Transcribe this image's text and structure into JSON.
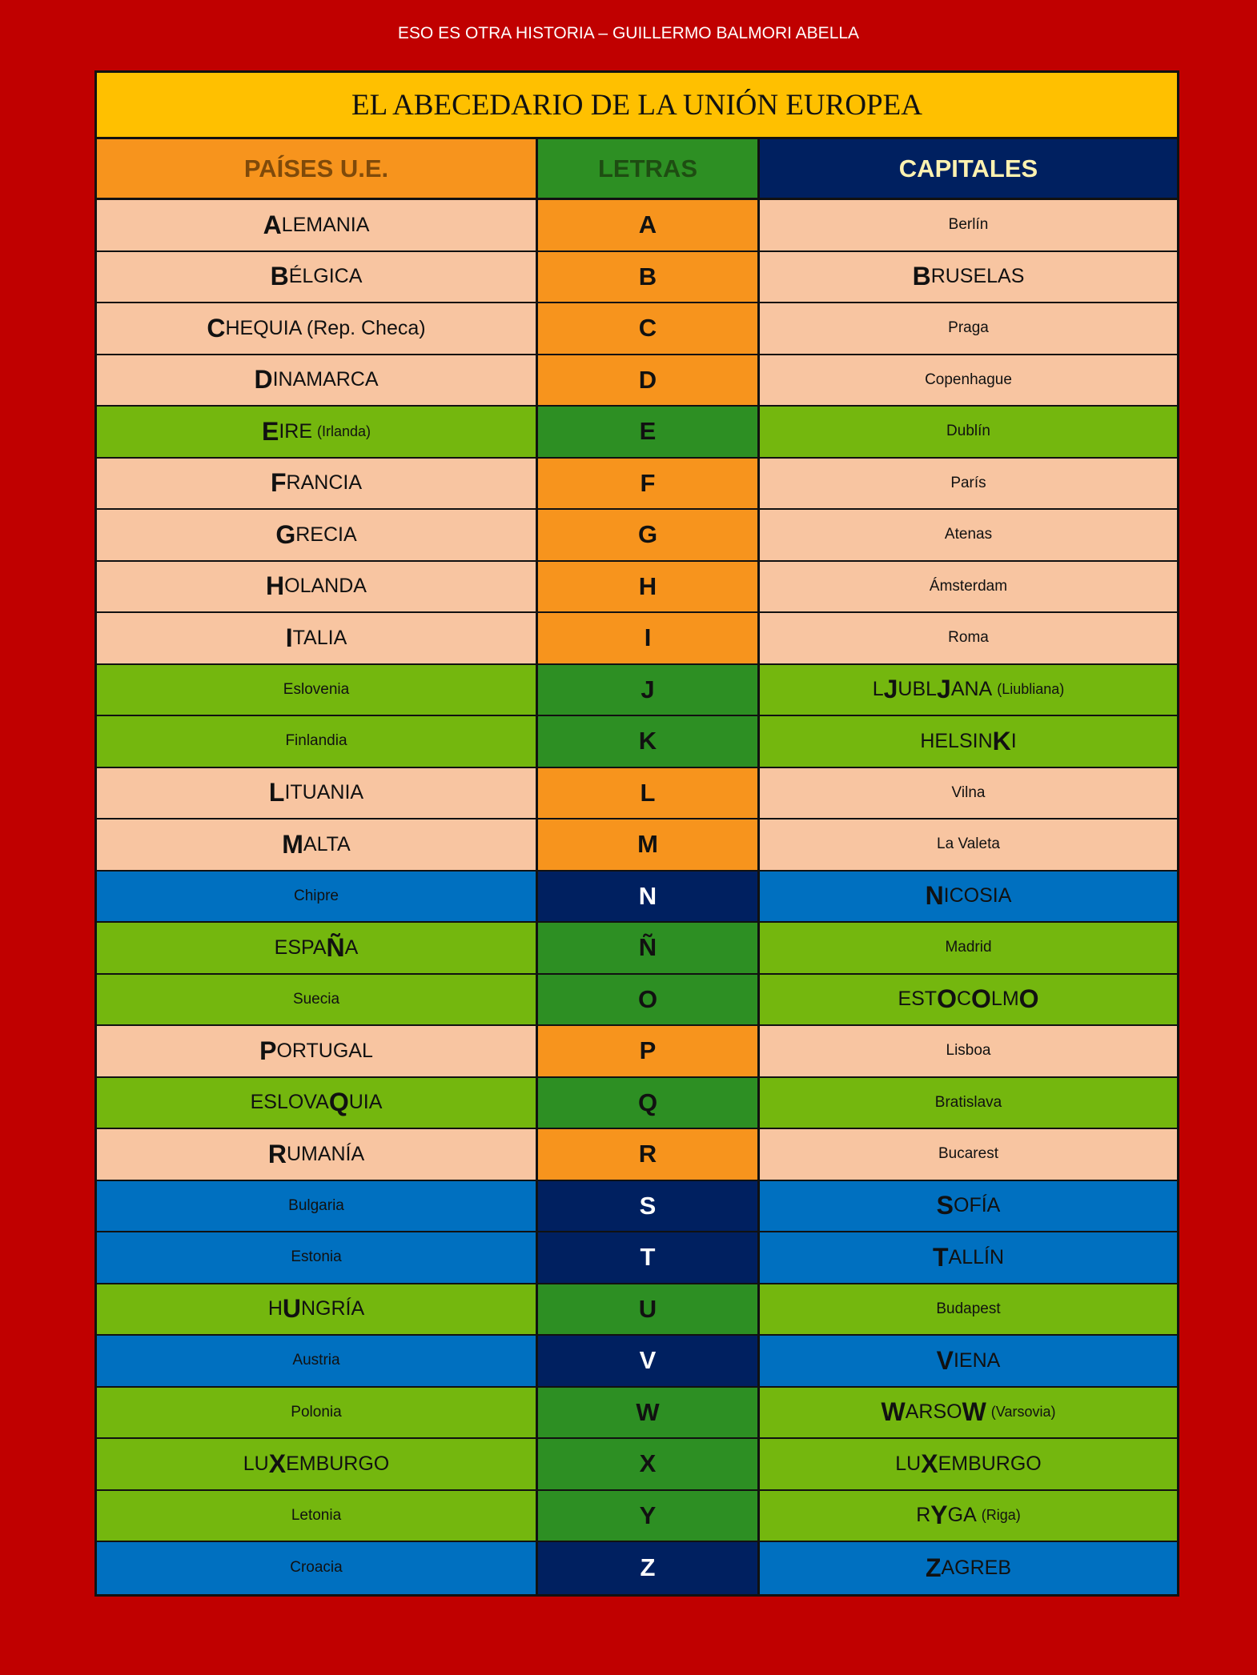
{
  "page_header": "ESO ES OTRA HISTORIA – GUILLERMO BALMORI ABELLA",
  "table_title": "EL ABECEDARIO DE LA UNIÓN EUROPEA",
  "colors": {
    "background": "#C00000",
    "title": "#FFC000",
    "peach": "#F8C5A1",
    "orange": "#F7941D",
    "light_green": "#74B70E",
    "dark_green": "#2D8F23",
    "blue": "#0070C0",
    "navy": "#002060"
  },
  "headers": [
    {
      "label": "PAÍSES U.E.",
      "color": "#7F4A0A"
    },
    {
      "label": "LETRAS",
      "color": "#1E4D12"
    },
    {
      "label": "CAPITALES",
      "color": "#FFF2B0"
    }
  ],
  "rows": [
    {
      "theme": "peach",
      "letter": "A",
      "country": [
        {
          "t": "A",
          "k": "big"
        },
        {
          "t": "LEMANIA",
          "k": "cap"
        }
      ],
      "capital": [
        {
          "t": "Berlín",
          "k": "small"
        }
      ]
    },
    {
      "theme": "peach",
      "letter": "B",
      "country": [
        {
          "t": "B",
          "k": "big"
        },
        {
          "t": "ÉLGICA",
          "k": "cap"
        }
      ],
      "capital": [
        {
          "t": "B",
          "k": "big"
        },
        {
          "t": "RUSELAS",
          "k": "cap"
        }
      ]
    },
    {
      "theme": "peach",
      "letter": "C",
      "country": [
        {
          "t": "C",
          "k": "big"
        },
        {
          "t": "HEQUIA (Rep. Checa)",
          "k": "cap"
        }
      ],
      "capital": [
        {
          "t": "Praga",
          "k": "small"
        }
      ]
    },
    {
      "theme": "peach",
      "letter": "D",
      "country": [
        {
          "t": "D",
          "k": "big"
        },
        {
          "t": "INAMARCA",
          "k": "cap"
        }
      ],
      "capital": [
        {
          "t": "Copenhague",
          "k": "small"
        }
      ]
    },
    {
      "theme": "green",
      "letter": "E",
      "country": [
        {
          "t": "E",
          "k": "big"
        },
        {
          "t": "IRE",
          "k": "cap"
        },
        {
          "t": "(Irlanda)",
          "k": "note"
        }
      ],
      "capital": [
        {
          "t": "Dublín",
          "k": "small"
        }
      ]
    },
    {
      "theme": "peach",
      "letter": "F",
      "country": [
        {
          "t": "F",
          "k": "big"
        },
        {
          "t": "RANCIA",
          "k": "cap"
        }
      ],
      "capital": [
        {
          "t": "París",
          "k": "small"
        }
      ]
    },
    {
      "theme": "peach",
      "letter": "G",
      "country": [
        {
          "t": "G",
          "k": "big"
        },
        {
          "t": "RECIA",
          "k": "cap"
        }
      ],
      "capital": [
        {
          "t": "Atenas",
          "k": "small"
        }
      ]
    },
    {
      "theme": "peach",
      "letter": "H",
      "country": [
        {
          "t": "H",
          "k": "big"
        },
        {
          "t": "OLANDA",
          "k": "cap"
        }
      ],
      "capital": [
        {
          "t": "Ámsterdam",
          "k": "small"
        }
      ]
    },
    {
      "theme": "peach",
      "letter": "I",
      "country": [
        {
          "t": "I",
          "k": "big"
        },
        {
          "t": "TALIA",
          "k": "cap"
        }
      ],
      "capital": [
        {
          "t": "Roma",
          "k": "small"
        }
      ]
    },
    {
      "theme": "green",
      "letter": "J",
      "country": [
        {
          "t": "Eslovenia",
          "k": "small"
        }
      ],
      "capital": [
        {
          "t": "L",
          "k": "cap"
        },
        {
          "t": "J",
          "k": "big"
        },
        {
          "t": "UBL",
          "k": "cap"
        },
        {
          "t": "J",
          "k": "big"
        },
        {
          "t": "ANA",
          "k": "cap"
        },
        {
          "t": "(Liubliana)",
          "k": "note"
        }
      ]
    },
    {
      "theme": "green",
      "letter": "K",
      "country": [
        {
          "t": "Finlandia",
          "k": "small"
        }
      ],
      "capital": [
        {
          "t": "HELSIN",
          "k": "cap"
        },
        {
          "t": "K",
          "k": "big"
        },
        {
          "t": "I",
          "k": "cap"
        }
      ]
    },
    {
      "theme": "peach",
      "letter": "L",
      "country": [
        {
          "t": "L",
          "k": "big"
        },
        {
          "t": "ITUANIA",
          "k": "cap"
        }
      ],
      "capital": [
        {
          "t": "Vilna",
          "k": "small"
        }
      ]
    },
    {
      "theme": "peach",
      "letter": "M",
      "country": [
        {
          "t": "M",
          "k": "big"
        },
        {
          "t": "ALTA",
          "k": "cap"
        }
      ],
      "capital": [
        {
          "t": "La Valeta",
          "k": "small"
        }
      ]
    },
    {
      "theme": "blue",
      "letter": "N",
      "country": [
        {
          "t": "Chipre",
          "k": "small"
        }
      ],
      "capital": [
        {
          "t": "N",
          "k": "big"
        },
        {
          "t": "ICOSIA",
          "k": "cap"
        }
      ]
    },
    {
      "theme": "green",
      "letter": "Ñ",
      "country": [
        {
          "t": "ESPA",
          "k": "cap"
        },
        {
          "t": "Ñ",
          "k": "big"
        },
        {
          "t": "A",
          "k": "cap"
        }
      ],
      "capital": [
        {
          "t": "Madrid",
          "k": "small"
        }
      ]
    },
    {
      "theme": "green",
      "letter": "O",
      "country": [
        {
          "t": "Suecia",
          "k": "small"
        }
      ],
      "capital": [
        {
          "t": "EST",
          "k": "cap"
        },
        {
          "t": "O",
          "k": "big"
        },
        {
          "t": "C",
          "k": "cap"
        },
        {
          "t": "O",
          "k": "big"
        },
        {
          "t": "LM",
          "k": "cap"
        },
        {
          "t": "O",
          "k": "big"
        }
      ]
    },
    {
      "theme": "peach",
      "letter": "P",
      "country": [
        {
          "t": "P",
          "k": "big"
        },
        {
          "t": "ORTUGAL",
          "k": "cap"
        }
      ],
      "capital": [
        {
          "t": "Lisboa",
          "k": "small"
        }
      ]
    },
    {
      "theme": "green",
      "letter": "Q",
      "country": [
        {
          "t": "ESLOVA",
          "k": "cap"
        },
        {
          "t": "Q",
          "k": "big"
        },
        {
          "t": "UIA",
          "k": "cap"
        }
      ],
      "capital": [
        {
          "t": "Bratislava",
          "k": "small"
        }
      ]
    },
    {
      "theme": "peach",
      "letter": "R",
      "country": [
        {
          "t": "R",
          "k": "big"
        },
        {
          "t": "UMANÍA",
          "k": "cap"
        }
      ],
      "capital": [
        {
          "t": "Bucarest",
          "k": "small"
        }
      ]
    },
    {
      "theme": "blue",
      "letter": "S",
      "country": [
        {
          "t": "Bulgaria",
          "k": "small"
        }
      ],
      "capital": [
        {
          "t": "S",
          "k": "big"
        },
        {
          "t": "OFÍA",
          "k": "cap"
        }
      ]
    },
    {
      "theme": "blue",
      "letter": "T",
      "country": [
        {
          "t": "Estonia",
          "k": "small"
        }
      ],
      "capital": [
        {
          "t": "T",
          "k": "big"
        },
        {
          "t": "ALLÍN",
          "k": "cap"
        }
      ]
    },
    {
      "theme": "green",
      "letter": "U",
      "country": [
        {
          "t": "H",
          "k": "cap"
        },
        {
          "t": "U",
          "k": "big"
        },
        {
          "t": "NGRÍA",
          "k": "cap"
        }
      ],
      "capital": [
        {
          "t": "Budapest",
          "k": "small"
        }
      ]
    },
    {
      "theme": "blue",
      "letter": "V",
      "country": [
        {
          "t": "Austria",
          "k": "small"
        }
      ],
      "capital": [
        {
          "t": "V",
          "k": "big"
        },
        {
          "t": "IENA",
          "k": "cap"
        }
      ]
    },
    {
      "theme": "green",
      "letter": "W",
      "country": [
        {
          "t": "Polonia",
          "k": "small"
        }
      ],
      "capital": [
        {
          "t": "W",
          "k": "big"
        },
        {
          "t": "ARSO",
          "k": "cap"
        },
        {
          "t": "W",
          "k": "big"
        },
        {
          "t": "(Varsovia)",
          "k": "note"
        }
      ]
    },
    {
      "theme": "green",
      "letter": "X",
      "country": [
        {
          "t": "LU",
          "k": "cap"
        },
        {
          "t": "X",
          "k": "big"
        },
        {
          "t": "EMBURGO",
          "k": "cap"
        }
      ],
      "capital": [
        {
          "t": "LU",
          "k": "cap"
        },
        {
          "t": "X",
          "k": "big"
        },
        {
          "t": "EMBURGO",
          "k": "cap"
        }
      ]
    },
    {
      "theme": "green",
      "letter": "Y",
      "country": [
        {
          "t": "Letonia",
          "k": "small"
        }
      ],
      "capital": [
        {
          "t": "R",
          "k": "cap"
        },
        {
          "t": "Y",
          "k": "big"
        },
        {
          "t": "GA",
          "k": "cap"
        },
        {
          "t": "(Riga)",
          "k": "note"
        }
      ]
    },
    {
      "theme": "blue",
      "letter": "Z",
      "country": [
        {
          "t": "Croacia",
          "k": "small"
        }
      ],
      "capital": [
        {
          "t": "Z",
          "k": "big"
        },
        {
          "t": "AGREB",
          "k": "cap"
        }
      ]
    }
  ]
}
